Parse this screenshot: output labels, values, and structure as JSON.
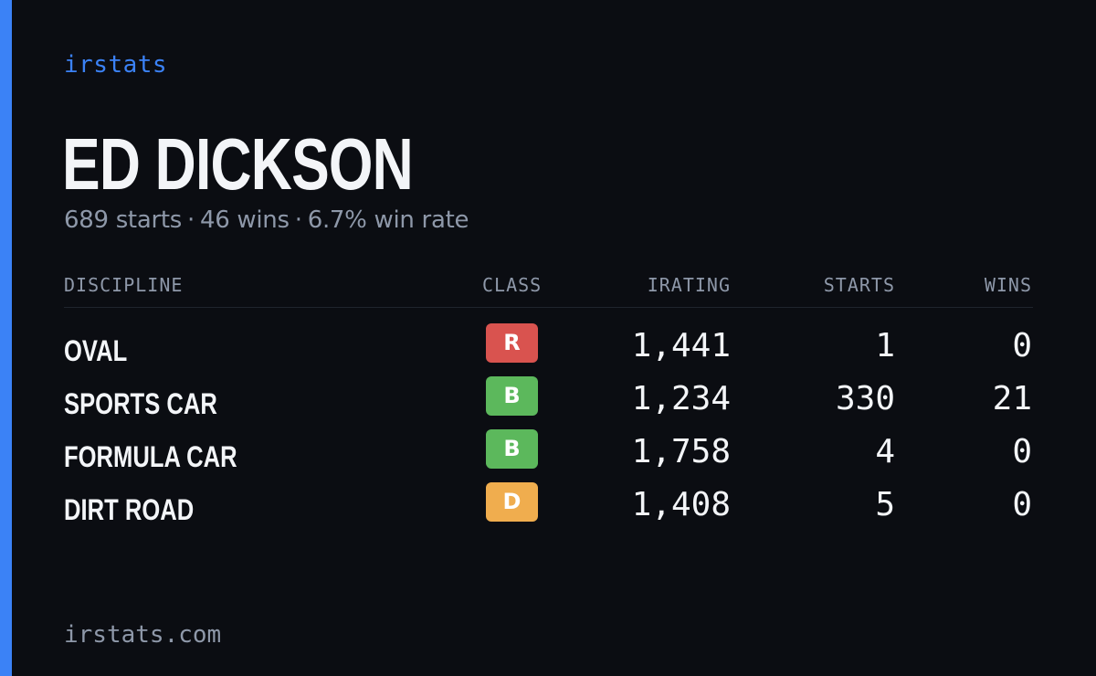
{
  "brand": "irstats",
  "player": {
    "name": "ED DICKSON",
    "starts": "689 starts",
    "wins": "46 wins",
    "win_rate": "6.7% win rate",
    "separator": "·"
  },
  "table": {
    "headers": {
      "discipline": "DISCIPLINE",
      "class": "CLASS",
      "irating": "IRATING",
      "starts": "STARTS",
      "wins": "WINS"
    },
    "rows": [
      {
        "discipline": "OVAL",
        "class": "R",
        "class_color": "#d9534f",
        "irating": "1,441",
        "starts": "1",
        "wins": "0"
      },
      {
        "discipline": "SPORTS CAR",
        "class": "B",
        "class_color": "#5cb85c",
        "irating": "1,234",
        "starts": "330",
        "wins": "21"
      },
      {
        "discipline": "FORMULA CAR",
        "class": "B",
        "class_color": "#5cb85c",
        "irating": "1,758",
        "starts": "4",
        "wins": "0"
      },
      {
        "discipline": "DIRT ROAD",
        "class": "D",
        "class_color": "#f0ad4e",
        "irating": "1,408",
        "starts": "5",
        "wins": "0"
      }
    ]
  },
  "footer": "irstats.com",
  "colors": {
    "background": "#0b0d12",
    "accent": "#3b82f6",
    "muted_text": "#8e98a9",
    "primary_text": "#f3f5f8"
  }
}
